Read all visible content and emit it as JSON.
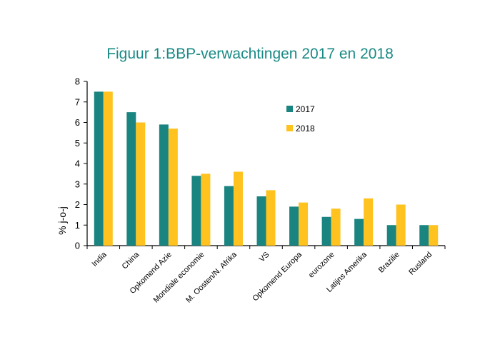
{
  "chart_data": {
    "type": "bar",
    "title": "Figuur 1:BBP-verwachtingen 2017 en 2018",
    "ylabel": "% j-o-j",
    "xlabel": "",
    "ylim": [
      0,
      8
    ],
    "yticks": [
      0,
      1,
      2,
      3,
      4,
      5,
      6,
      7,
      8
    ],
    "grid": false,
    "legend_position": "top-right",
    "categories": [
      "India",
      "China",
      "Opkomend Azie",
      "Mondiale economie",
      "M. Oosten/N. Afrika",
      "VS",
      "Opkomend Europa",
      "eurozone",
      "Latijns Amerika",
      "Brazilie",
      "Rusland"
    ],
    "series": [
      {
        "name": "2017",
        "color": "#1a8580",
        "values": [
          7.5,
          6.5,
          5.9,
          3.4,
          2.9,
          2.4,
          1.9,
          1.4,
          1.3,
          1.0,
          1.0
        ]
      },
      {
        "name": "2018",
        "color": "#ffc21e",
        "values": [
          7.5,
          6.0,
          5.7,
          3.5,
          3.6,
          2.7,
          2.1,
          1.8,
          2.3,
          2.0,
          1.0
        ]
      }
    ]
  }
}
